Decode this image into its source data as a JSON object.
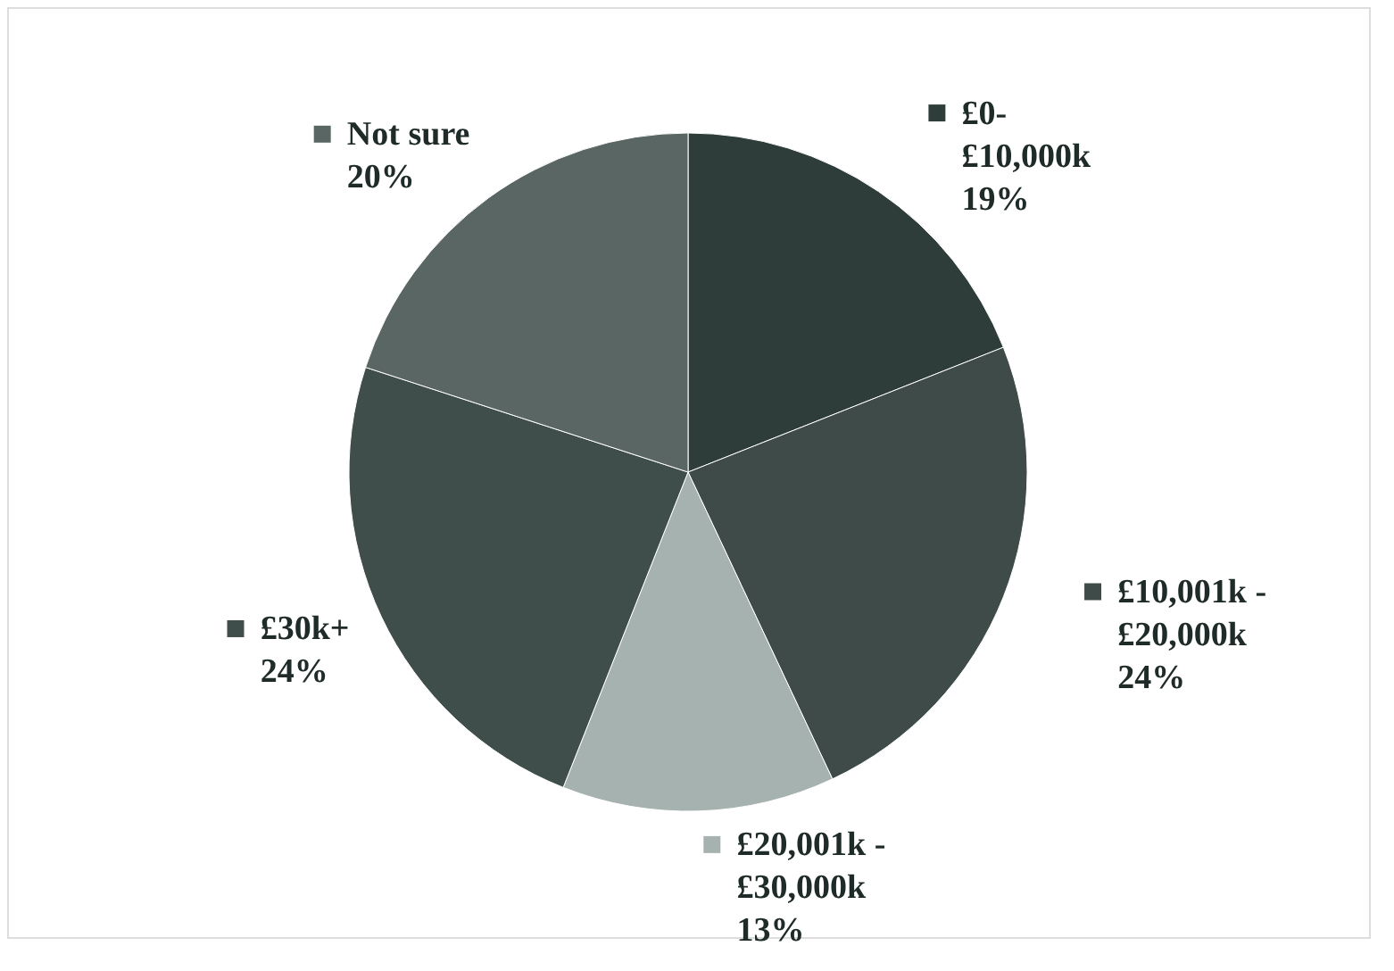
{
  "chart_data": {
    "type": "pie",
    "categories": [
      "£0-\n£10,000k",
      "£10,001k -\n£20,000k",
      "£20,001k -\n£30,000k",
      "£30k+",
      "Not sure"
    ],
    "values": [
      19,
      24,
      13,
      24,
      20
    ],
    "value_labels": [
      "19%",
      "24%",
      "13%",
      "24%",
      "20%"
    ],
    "colors": [
      "#2f3d3a",
      "#3e4b48",
      "#a6b2af",
      "#404e4b",
      "#596663"
    ],
    "legend": "right"
  }
}
